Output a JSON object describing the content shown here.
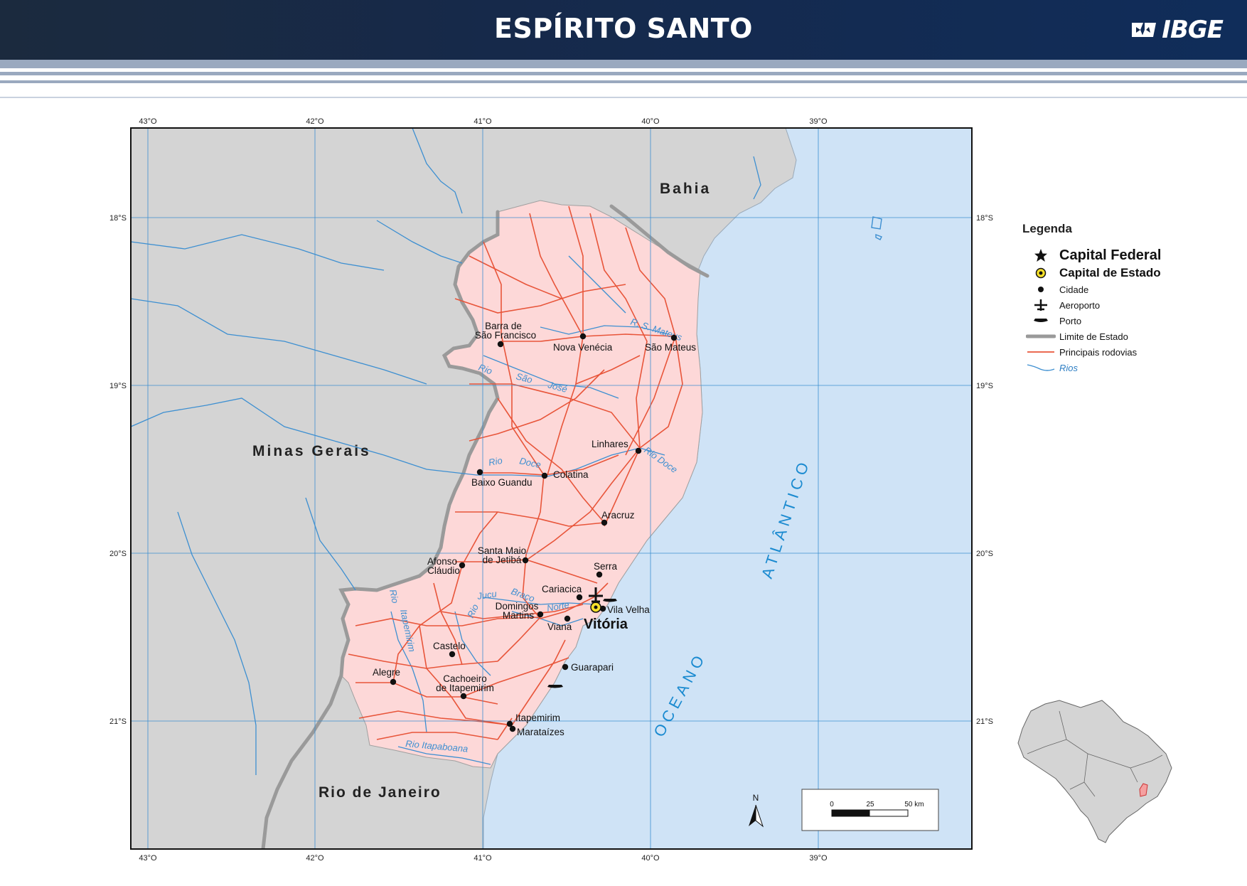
{
  "header": {
    "title": "ESPÍRITO SANTO",
    "logo_text": "IBGE"
  },
  "colors": {
    "sea": "#cfe3f6",
    "neighbor": "#d4d4d4",
    "state": "#fdd8d8",
    "road": "#e8553a",
    "river": "#3d8fd1",
    "border": "#9a9a9a",
    "header_bg": "#16294a"
  },
  "graticule": {
    "lon_labels": [
      "43°O",
      "42°O",
      "41°O",
      "40°O",
      "39°O"
    ],
    "lat_labels": [
      "18°S",
      "19°S",
      "20°S",
      "21°S"
    ]
  },
  "regions": {
    "bahia": "Bahia",
    "minas": "Minas Gerais",
    "rio": "Rio de Janeiro"
  },
  "ocean": {
    "word1": "OCEANO",
    "word2": "ATLÂNTICO"
  },
  "capital": {
    "name": "Vitória"
  },
  "cities": [
    {
      "name": "Barra de",
      "name2": "São Francisco"
    },
    {
      "name": "Nova Venécia"
    },
    {
      "name": "São Mateus"
    },
    {
      "name": "Linhares"
    },
    {
      "name": "Baixo Guandu"
    },
    {
      "name": "Colatina"
    },
    {
      "name": "Aracruz"
    },
    {
      "name": "Santa Maio",
      "name2": "de Jetibá"
    },
    {
      "name": "Afonso",
      "name2": "Cláudio"
    },
    {
      "name": "Serra"
    },
    {
      "name": "Cariacica"
    },
    {
      "name": "Vila Velha"
    },
    {
      "name": "Domingos",
      "name2": "Martins"
    },
    {
      "name": "Viana"
    },
    {
      "name": "Castelo"
    },
    {
      "name": "Alegre"
    },
    {
      "name": "Cachoeiro",
      "name2": "de Itapemirim"
    },
    {
      "name": "Guarapari"
    },
    {
      "name": "Itapemirim"
    },
    {
      "name": "Marataízes"
    }
  ],
  "rivers": {
    "sao_mateus": "R. S. Mateus",
    "sao_jose_1": "Rio",
    "sao_jose_2": "São",
    "sao_jose_3": "José",
    "doce_w1": "Rio",
    "doce_w2": "Doce",
    "doce_e": "Rio Doce",
    "jucu_1": "Jucu",
    "jucu_2": "Rio",
    "braco_1": "Braço",
    "braco_2": "Norte",
    "itapemirim_1": "Rio",
    "itapemirim_2": "Itapemirim",
    "itapoana": "Rio Itapaboana"
  },
  "north_arrow": "N",
  "scale": {
    "l0": "0",
    "l1": "25",
    "l2": "50 km"
  },
  "legend": {
    "title": "Legenda",
    "items": [
      {
        "label": "Capital Federal",
        "icon": "star-icon"
      },
      {
        "label": "Capital de Estado",
        "icon": "capital-icon"
      },
      {
        "label": "Cidade",
        "icon": "city-dot-icon"
      },
      {
        "label": "Aeroporto",
        "icon": "airport-icon"
      },
      {
        "label": "Porto",
        "icon": "port-icon"
      },
      {
        "label": "Limite de Estado",
        "icon": "state-limit-icon"
      },
      {
        "label": "Principais rodovias",
        "icon": "road-icon"
      },
      {
        "label": "Rios",
        "icon": "river-icon"
      }
    ]
  },
  "inset": {
    "description_none": ""
  }
}
